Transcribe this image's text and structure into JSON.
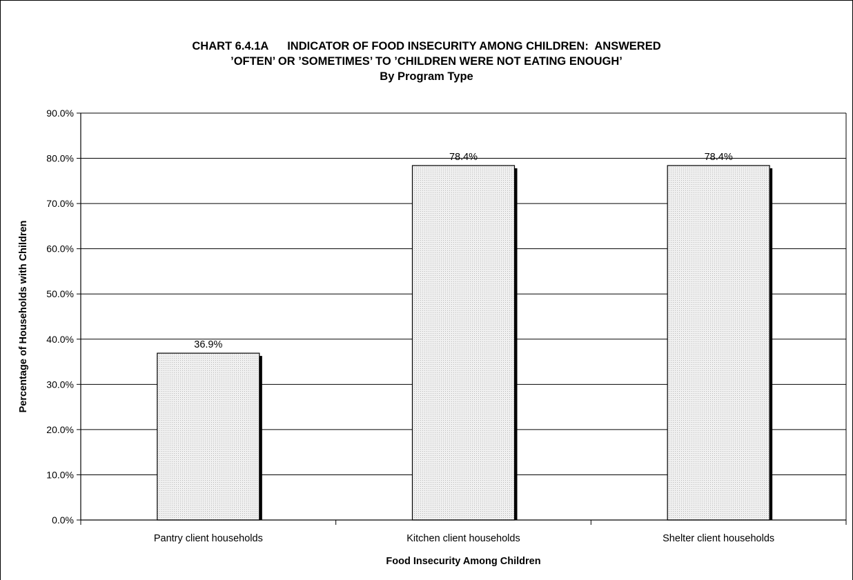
{
  "chart_data": {
    "type": "bar",
    "title_lines": [
      "CHART 6.4.1A      INDICATOR OF FOOD INSECURITY AMONG CHILDREN:  ANSWERED",
      "’OFTEN’ OR ’SOMETIMES’ TO ’CHILDREN WERE NOT EATING ENOUGH’",
      "By Program Type"
    ],
    "categories": [
      "Pantry client households",
      "Kitchen client households",
      "Shelter client households"
    ],
    "values": [
      36.9,
      78.4,
      78.4
    ],
    "data_labels": [
      "36.9%",
      "78.4%",
      "78.4%"
    ],
    "xlabel": "Food Insecurity Among Children",
    "ylabel": "Percentage of Households with Children",
    "ylim": [
      0,
      90
    ],
    "yticks": [
      "0.0%",
      "10.0%",
      "20.0%",
      "30.0%",
      "40.0%",
      "50.0%",
      "60.0%",
      "70.0%",
      "80.0%",
      "90.0%"
    ],
    "grid": true,
    "legend": "none",
    "bar_fill": "#e6e6e6",
    "bar_shadow": "#000000"
  }
}
